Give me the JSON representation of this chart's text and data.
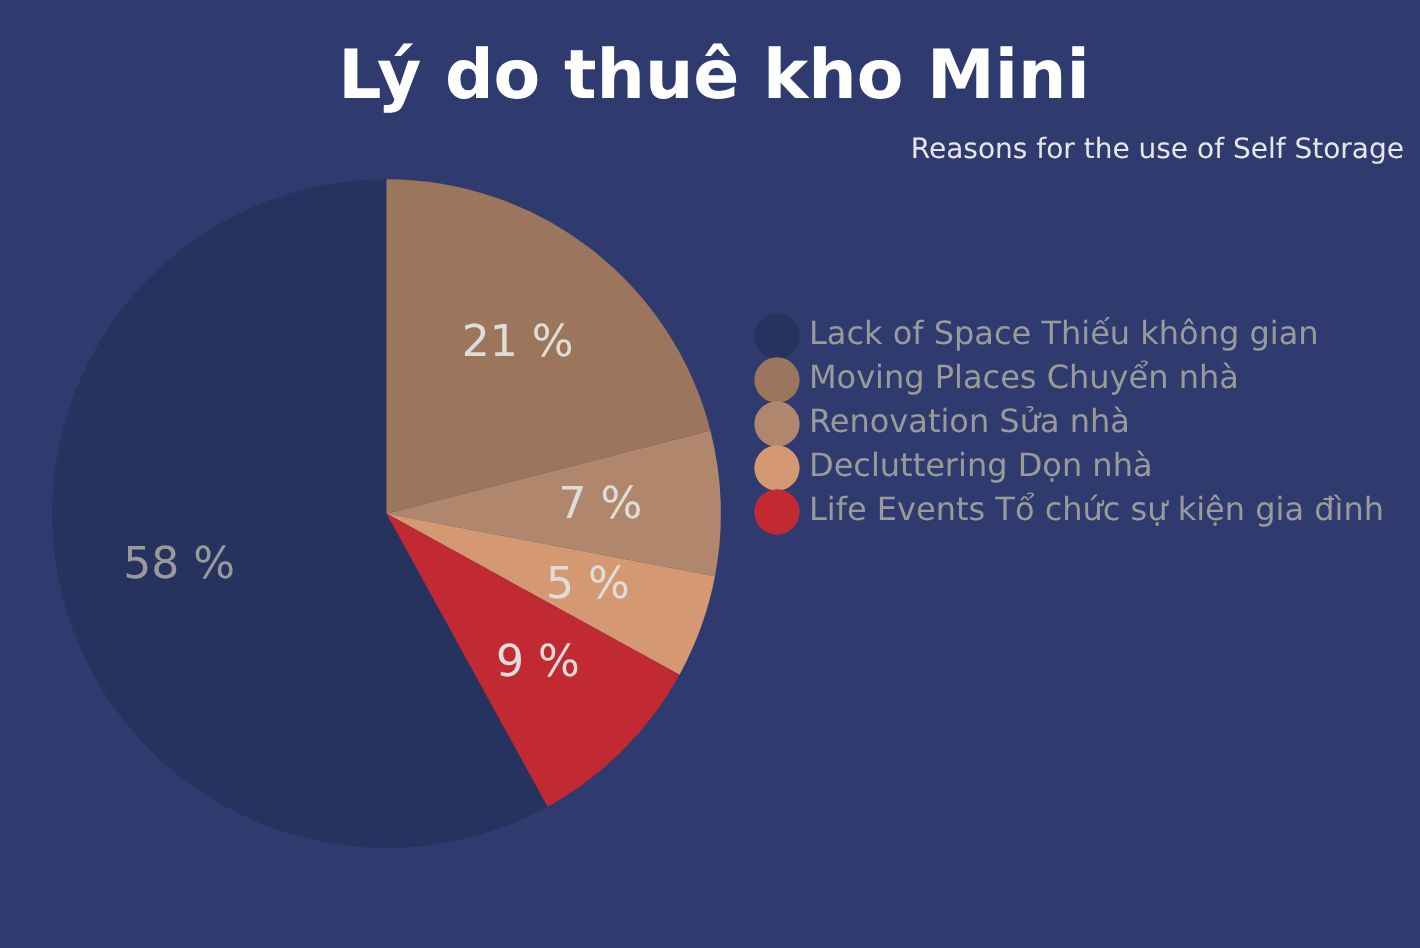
{
  "chart_data": {
    "type": "pie",
    "title": "Lý do thuê kho Mini",
    "subtitle": "Reasons for the use of Self Storage",
    "categories": [
      "Lack of Space Thiếu không gian",
      "Moving Places Chuyển nhà",
      "Renovation Sửa nhà",
      "Decluttering Dọn nhà",
      "Life Events Tổ chức sự kiện gia đình"
    ],
    "values": [
      58,
      21,
      7,
      5,
      9
    ],
    "value_labels": [
      "58 %",
      "21 %",
      "7 %",
      "5 %",
      "9 %"
    ],
    "colors": [
      "#27335f",
      "#9c765c",
      "#b0876c",
      "#d49873",
      "#c12a33"
    ],
    "legend": "right"
  }
}
